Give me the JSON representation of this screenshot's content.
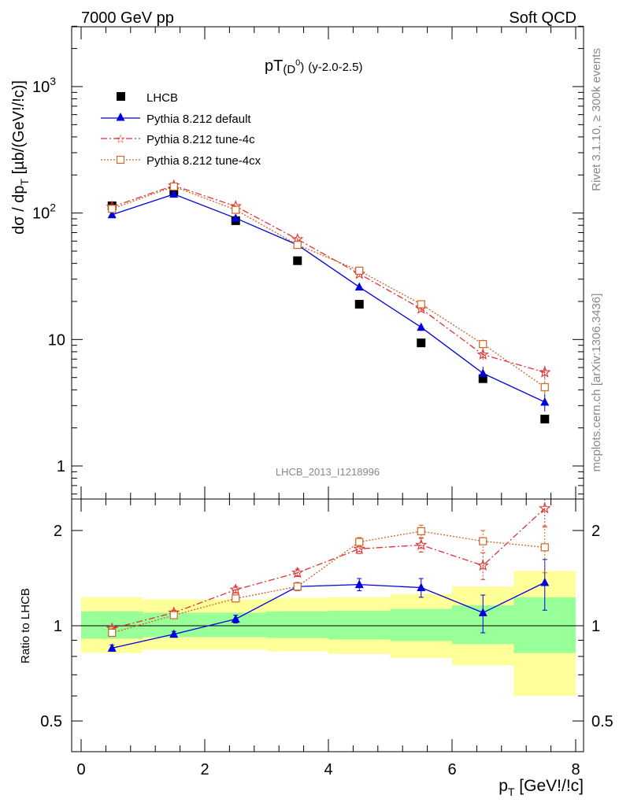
{
  "header": {
    "left": "7000 GeV pp",
    "right": "Soft QCD"
  },
  "side_labels": {
    "rivet": "Rivet 3.1.10, ≥ 300k events",
    "mcplots": "mcplots.cern.ch [arXiv:1306.3436]"
  },
  "colors": {
    "data": "#000000",
    "default": "#0000dd",
    "tune4c": "#dd3333",
    "tune4cx": "#cc6622",
    "band_inner": "#99ff99",
    "band_outer": "#ffff99"
  },
  "chart_data": [
    {
      "type": "scatter",
      "title": "pT(D0) (y-2.0-2.5)",
      "title_main": "pT",
      "title_sub": "(D",
      "title_sup": "0",
      "title_close": ")",
      "title_extra": "(y-2.0-2.5)",
      "ylabel": "dσ / dp_T [µb/(GeV!/!c)]",
      "ylabel_parts": {
        "a": "dσ / dp",
        "sub": "T",
        "b": " [µb/(GeV!/!c)]"
      },
      "yscale": "log",
      "xlim": [
        -0.25,
        8.1
      ],
      "ylim": [
        0.6,
        3000
      ],
      "yticks": [
        {
          "value": 1,
          "label": "1"
        },
        {
          "value": 10,
          "label": "10"
        },
        {
          "value": 100,
          "label": "10",
          "sup": "2"
        },
        {
          "value": 1000,
          "label": "10",
          "sup": "3"
        }
      ],
      "watermark": "LHCB_2013_I1218996",
      "legend_position": "top-left",
      "x": [
        0.5,
        1.5,
        2.5,
        3.5,
        4.5,
        5.5,
        6.5,
        7.5
      ],
      "series": [
        {
          "name": "LHCB",
          "key": "data",
          "marker": "square",
          "values": [
            114,
            150,
            87,
            42,
            19,
            9.4,
            4.9,
            2.35
          ]
        },
        {
          "name": "Pythia 8.212 default",
          "key": "default",
          "marker": "triangle",
          "line": "solid",
          "values": [
            97,
            141,
            91,
            56,
            26,
            12.5,
            5.4,
            3.2
          ],
          "errors": [
            2,
            3,
            2,
            1.5,
            0.8,
            0.8,
            0.7,
            0.5
          ]
        },
        {
          "name": "Pythia 8.212 tune-4c",
          "key": "tune4c",
          "marker": "star",
          "line": "dashdot",
          "values": [
            112,
            165,
            113,
            62,
            33,
            17.5,
            7.6,
            5.5
          ],
          "errors": [
            2,
            3,
            2,
            1.5,
            1,
            1,
            0.7,
            0.7
          ]
        },
        {
          "name": "Pythia 8.212 tune-4cx",
          "key": "tune4cx",
          "marker": "open-square",
          "line": "dotted",
          "values": [
            108,
            162,
            106,
            56,
            35,
            19,
            9.2,
            4.2
          ],
          "errors": [
            2,
            3,
            2,
            1.5,
            1,
            1,
            0.8,
            0.5
          ]
        }
      ]
    },
    {
      "type": "scatter",
      "title": "",
      "ylabel": "Ratio to LHCB",
      "xlabel": "p_T [GeV!/!c]",
      "xlabel_parts": {
        "a": "p",
        "sub": "T",
        "b": " [GeV!/!c]"
      },
      "yscale": "log",
      "xlim": [
        -0.25,
        8.1
      ],
      "ylim": [
        0.4,
        2.5
      ],
      "xticks": [
        0,
        2,
        4,
        6,
        8
      ],
      "yticks": [
        {
          "value": 0.5,
          "label": "0.5"
        },
        {
          "value": 1,
          "label": "1"
        },
        {
          "value": 2,
          "label": "2"
        }
      ],
      "reference_line": 1,
      "bins": [
        [
          0,
          1
        ],
        [
          1,
          2
        ],
        [
          2,
          3
        ],
        [
          3,
          4
        ],
        [
          4,
          5
        ],
        [
          5,
          6
        ],
        [
          6,
          7
        ],
        [
          7,
          8
        ]
      ],
      "band_inner": [
        [
          0.91,
          1.11
        ],
        [
          0.92,
          1.1
        ],
        [
          0.92,
          1.1
        ],
        [
          0.915,
          1.11
        ],
        [
          0.905,
          1.115
        ],
        [
          0.895,
          1.13
        ],
        [
          0.875,
          1.16
        ],
        [
          0.82,
          1.23
        ]
      ],
      "band_outer": [
        [
          0.82,
          1.23
        ],
        [
          0.84,
          1.21
        ],
        [
          0.84,
          1.21
        ],
        [
          0.83,
          1.225
        ],
        [
          0.815,
          1.23
        ],
        [
          0.79,
          1.26
        ],
        [
          0.75,
          1.33
        ],
        [
          0.6,
          1.49
        ]
      ],
      "x": [
        0.5,
        1.5,
        2.5,
        3.5,
        4.5,
        5.5,
        6.5,
        7.5
      ],
      "series": [
        {
          "name": "Pythia 8.212 default",
          "key": "default",
          "marker": "triangle",
          "line": "solid",
          "values": [
            0.85,
            0.94,
            1.05,
            1.33,
            1.35,
            1.32,
            1.1,
            1.37
          ],
          "errors": [
            0.02,
            0.02,
            0.03,
            0.04,
            0.06,
            0.09,
            0.15,
            0.25
          ]
        },
        {
          "name": "Pythia 8.212 tune-4c",
          "key": "tune4c",
          "marker": "star",
          "line": "dashdot",
          "values": [
            0.98,
            1.1,
            1.3,
            1.47,
            1.75,
            1.8,
            1.55,
            2.35
          ],
          "errors": [
            0.02,
            0.02,
            0.03,
            0.04,
            0.06,
            0.09,
            0.15,
            0.3
          ]
        },
        {
          "name": "Pythia 8.212 tune-4cx",
          "key": "tune4cx",
          "marker": "open-square",
          "line": "dotted",
          "values": [
            0.95,
            1.08,
            1.22,
            1.33,
            1.84,
            1.99,
            1.85,
            1.77
          ],
          "errors": [
            0.02,
            0.02,
            0.03,
            0.04,
            0.06,
            0.09,
            0.15,
            0.3
          ]
        }
      ]
    }
  ]
}
